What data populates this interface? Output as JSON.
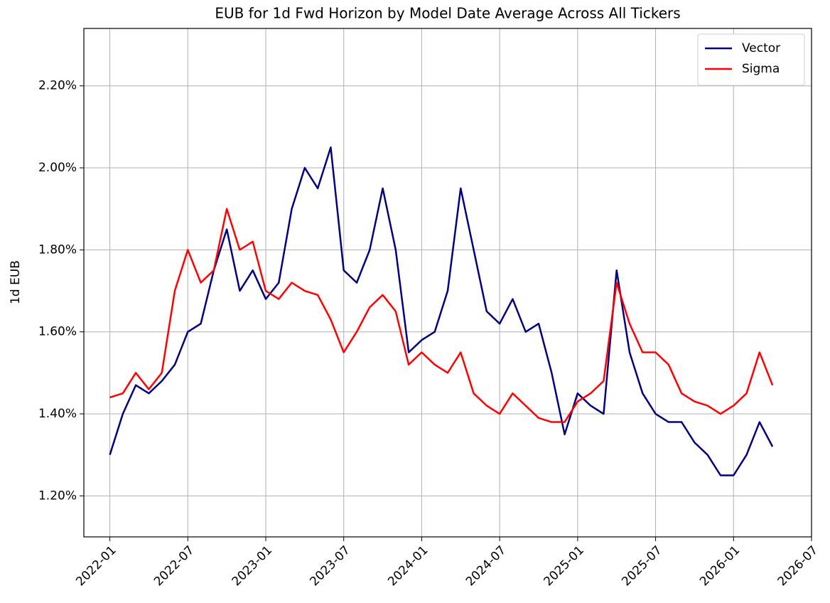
{
  "chart_data": {
    "type": "line",
    "title": "EUB for 1d Fwd Horizon by Model Date Average Across All Tickers",
    "ylabel": "1d EUB",
    "x": [
      "2022-01",
      "2022-02",
      "2022-03",
      "2022-04",
      "2022-05",
      "2022-06",
      "2022-07",
      "2022-08",
      "2022-09",
      "2022-10",
      "2022-11",
      "2022-12",
      "2023-01",
      "2023-02",
      "2023-03",
      "2023-04",
      "2023-05",
      "2023-06",
      "2023-07",
      "2023-08",
      "2023-09",
      "2023-10",
      "2023-11",
      "2023-12",
      "2024-01",
      "2024-02",
      "2024-03",
      "2024-04",
      "2024-05",
      "2024-06",
      "2024-07",
      "2024-08",
      "2024-09",
      "2024-10",
      "2024-11",
      "2024-12",
      "2025-01",
      "2025-02",
      "2025-03",
      "2025-04",
      "2025-05",
      "2025-06",
      "2025-07",
      "2025-08",
      "2025-09",
      "2025-10",
      "2025-11",
      "2025-12",
      "2026-01",
      "2026-02",
      "2026-03",
      "2026-04"
    ],
    "series": [
      {
        "name": "Vector",
        "color": "#000080",
        "values": [
          1.3,
          1.4,
          1.47,
          1.45,
          1.48,
          1.52,
          1.6,
          1.62,
          1.75,
          1.85,
          1.7,
          1.75,
          1.68,
          1.72,
          1.9,
          2.0,
          1.95,
          2.05,
          1.75,
          1.72,
          1.8,
          1.95,
          1.8,
          1.55,
          1.58,
          1.6,
          1.7,
          1.95,
          1.8,
          1.65,
          1.62,
          1.68,
          1.6,
          1.62,
          1.5,
          1.35,
          1.45,
          1.42,
          1.4,
          1.75,
          1.55,
          1.45,
          1.4,
          1.38,
          1.38,
          1.33,
          1.3,
          1.25,
          1.25,
          1.3,
          1.38,
          1.32
        ]
      },
      {
        "name": "Sigma",
        "color": "#ff0000",
        "values": [
          1.44,
          1.45,
          1.5,
          1.46,
          1.5,
          1.7,
          1.8,
          1.72,
          1.75,
          1.9,
          1.8,
          1.82,
          1.7,
          1.68,
          1.72,
          1.7,
          1.69,
          1.63,
          1.55,
          1.6,
          1.66,
          1.69,
          1.65,
          1.52,
          1.55,
          1.52,
          1.5,
          1.55,
          1.45,
          1.42,
          1.4,
          1.45,
          1.42,
          1.39,
          1.38,
          1.38,
          1.43,
          1.45,
          1.48,
          1.72,
          1.62,
          1.55,
          1.55,
          1.52,
          1.45,
          1.43,
          1.42,
          1.4,
          1.42,
          1.45,
          1.55,
          1.47
        ]
      }
    ],
    "xlim": [
      "2021-11",
      "2026-07"
    ],
    "xticks": [
      "2022-01",
      "2022-07",
      "2023-01",
      "2023-07",
      "2024-01",
      "2024-07",
      "2025-01",
      "2025-07",
      "2026-01",
      "2026-07"
    ],
    "ylim": [
      1.1,
      2.34
    ],
    "yticks": [
      {
        "value": 1.2,
        "label": "1.20%"
      },
      {
        "value": 1.4,
        "label": "1.40%"
      },
      {
        "value": 1.6,
        "label": "1.60%"
      },
      {
        "value": 1.8,
        "label": "1.80%"
      },
      {
        "value": 2.0,
        "label": "2.00%"
      },
      {
        "value": 2.2,
        "label": "2.20%"
      }
    ],
    "grid": true,
    "legend": "upper right"
  }
}
